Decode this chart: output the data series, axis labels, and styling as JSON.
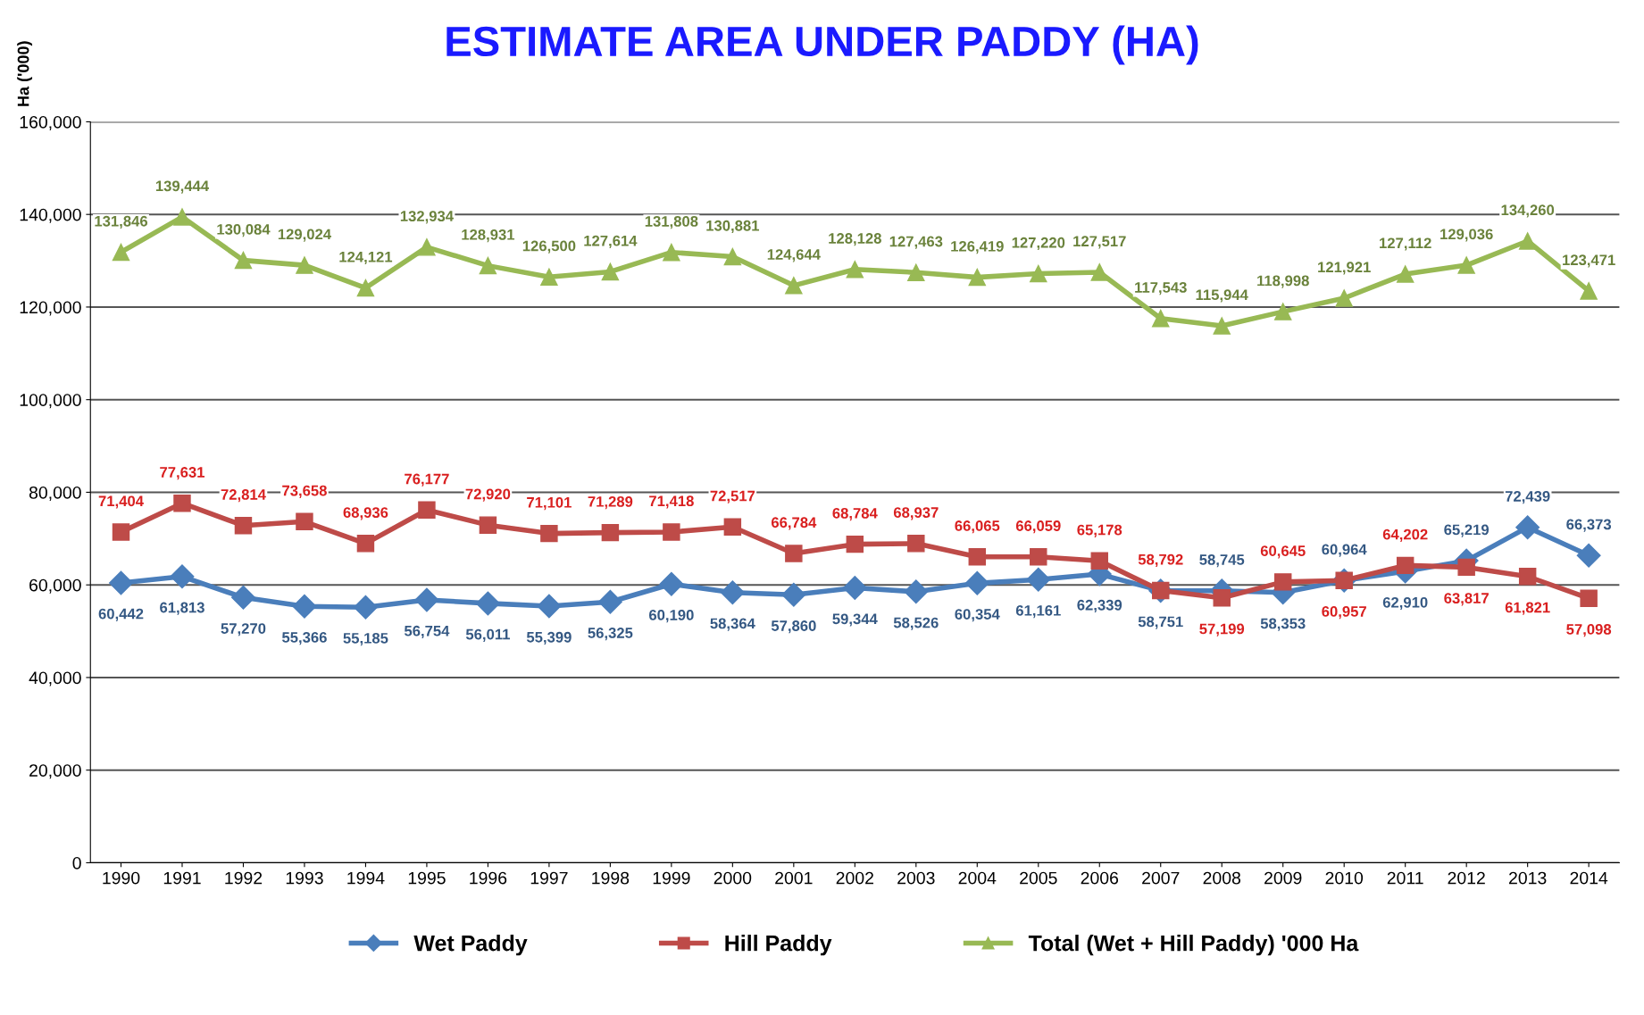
{
  "chart_data": {
    "type": "line",
    "title": "ESTIMATE AREA UNDER PADDY (HA)",
    "ylabel": "Ha ('000)",
    "categories": [
      "1990",
      "1991",
      "1992",
      "1993",
      "1994",
      "1995",
      "1996",
      "1997",
      "1998",
      "1999",
      "2000",
      "2001",
      "2002",
      "2003",
      "2004",
      "2005",
      "2006",
      "2007",
      "2008",
      "2009",
      "2010",
      "2011",
      "2012",
      "2013",
      "2014"
    ],
    "series": [
      {
        "name": "Wet Paddy",
        "color": "#4a7ebb",
        "marker": "diamond",
        "value_labels": [
          "60,442",
          "61,813",
          "57,270",
          "55,366",
          "55,185",
          "56,754",
          "56,011",
          "55,399",
          "56,325",
          "60,190",
          "58,364",
          "57,860",
          "59,344",
          "58,526",
          "60,354",
          "61,161",
          "62,339",
          "58,751",
          "58,745",
          "58,353",
          "60,964",
          "62,910",
          "65,219",
          "72,439",
          "66,373"
        ],
        "values": [
          60442,
          61813,
          57270,
          55366,
          55185,
          56754,
          56011,
          55399,
          56325,
          60190,
          58364,
          57860,
          59344,
          58526,
          60354,
          61161,
          62339,
          58751,
          58745,
          58353,
          60964,
          62910,
          65219,
          72439,
          66373
        ]
      },
      {
        "name": "Hill Paddy",
        "color": "#be4b48",
        "marker": "square",
        "value_labels": [
          "71,404",
          "77,631",
          "72,814",
          "73,658",
          "68,936",
          "76,177",
          "72,920",
          "71,101",
          "71,289",
          "71,418",
          "72,517",
          "66,784",
          "68,784",
          "68,937",
          "66,065",
          "66,059",
          "65,178",
          "58,792",
          "57,199",
          "60,645",
          "60,957",
          "64,202",
          "63,817",
          "61,821",
          "57,098"
        ],
        "values": [
          71404,
          77631,
          72814,
          73658,
          68936,
          76177,
          72920,
          71101,
          71289,
          71418,
          72517,
          66784,
          68784,
          68937,
          66065,
          66059,
          65178,
          58792,
          57199,
          60645,
          60957,
          64202,
          63817,
          61821,
          57098
        ]
      },
      {
        "name": "Total (Wet + Hill Paddy) '000 Ha",
        "color": "#98b954",
        "marker": "triangle",
        "value_labels": [
          "131,846",
          "139,444",
          "130,084",
          "129,024",
          "124,121",
          "132,934",
          "128,931",
          "126,500",
          "127,614",
          "131,808",
          "130,881",
          "124,644",
          "128,128",
          "127,463",
          "126,419",
          "127,220",
          "127,517",
          "117,543",
          "115,944",
          "118,998",
          "121,921",
          "127,112",
          "129,036",
          "134,260",
          "123,471"
        ],
        "values": [
          131846,
          139444,
          130084,
          129024,
          124121,
          132934,
          128931,
          126500,
          127614,
          131808,
          130881,
          124644,
          128128,
          127463,
          126419,
          127220,
          127517,
          117543,
          115944,
          118998,
          121921,
          127112,
          129036,
          134260,
          123471
        ]
      }
    ],
    "ylim": [
      0,
      160000
    ],
    "yticks": [
      0,
      {
        "value": 20000,
        "label": "20,000"
      },
      {
        "value": 40000,
        "label": "40,000"
      },
      {
        "value": 60000,
        "label": "60,000"
      },
      {
        "value": 80000,
        "label": "80,000"
      },
      {
        "value": 100000,
        "label": "100,000"
      },
      {
        "value": 120000,
        "label": "120,000"
      },
      {
        "value": 140000,
        "label": "140,000"
      },
      {
        "value": 160000,
        "label": "160,000"
      }
    ],
    "grid": "y",
    "legend": "bottom",
    "line_style": "solid"
  }
}
